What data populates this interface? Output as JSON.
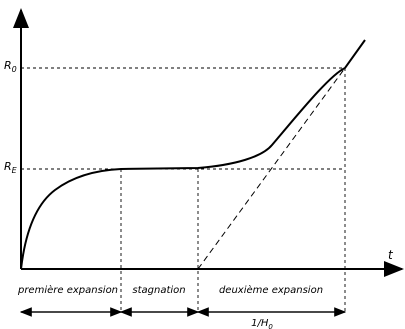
{
  "labels": {
    "y_top": "R",
    "y_top_sub": "0",
    "y_mid": "R",
    "y_mid_sub": "E",
    "x_axis": "t",
    "phase_1": "première expansion",
    "phase_2": "stagnation",
    "phase_3": "deuxième expansion",
    "interval": "1/H",
    "interval_sub": "0"
  }
}
